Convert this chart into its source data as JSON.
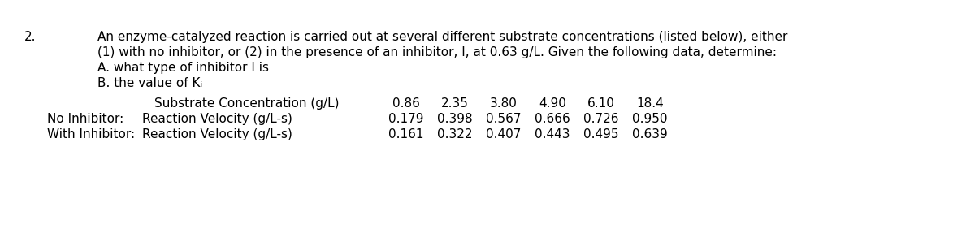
{
  "question_number": "2.",
  "intro_text_line1": "An enzyme-catalyzed reaction is carried out at several different substrate concentrations (listed below), either",
  "intro_text_line2": "(1) with no inhibitor, or (2) in the presence of an inhibitor, I, at 0.63 g/L. Given the following data, determine:",
  "sub_a": "A. what type of inhibitor I is",
  "sub_b": "B. the value of Kᵢ",
  "row_header": "Substrate Concentration (g/L)",
  "concentrations": [
    "0.86",
    "2.35",
    "3.80",
    "4.90",
    "6.10",
    "18.4"
  ],
  "no_inhibitor_label1": "No Inhibitor:",
  "no_inhibitor_label2": "Reaction Velocity (g/L-s)",
  "no_inhibitor_values": [
    "0.179",
    "0.398",
    "0.567",
    "0.666",
    "0.726",
    "0.950"
  ],
  "with_inhibitor_label1": "With Inhibitor:",
  "with_inhibitor_label2": "Reaction Velocity (g/L-s)",
  "with_inhibitor_values": [
    "0.161",
    "0.322",
    "0.407",
    "0.443",
    "0.495",
    "0.639"
  ],
  "bg_color": "#ffffff",
  "text_color": "#000000",
  "font_size": 11.0,
  "fig_width": 12.0,
  "fig_height": 3.03,
  "dpi": 100
}
